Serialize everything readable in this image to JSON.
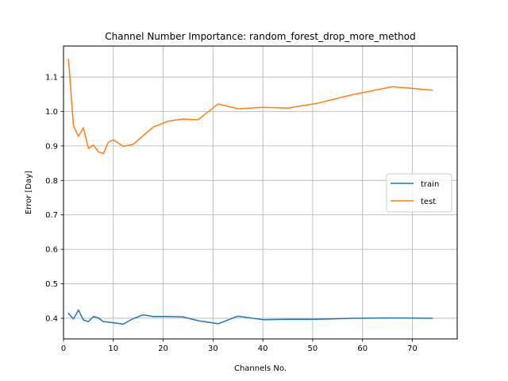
{
  "chart_data": {
    "type": "line",
    "title": "Channel Number Importance: random_forest_drop_more_method",
    "xlabel": "Channels No.",
    "ylabel": "Error [Day]",
    "xlim": [
      0,
      79
    ],
    "ylim": [
      0.34,
      1.19
    ],
    "xticks": [
      0,
      10,
      20,
      30,
      40,
      50,
      60,
      70
    ],
    "yticks": [
      0.4,
      0.5,
      0.6,
      0.7,
      0.8,
      0.9,
      1.0,
      1.1
    ],
    "xtick_labels": [
      "0",
      "10",
      "20",
      "30",
      "40",
      "50",
      "60",
      "70"
    ],
    "ytick_labels": [
      "0.4",
      "0.5",
      "0.6",
      "0.7",
      "0.8",
      "0.9",
      "1.0",
      "1.1"
    ],
    "grid": true,
    "legend_position": "center-right",
    "series": [
      {
        "name": "train",
        "color": "#1f77b4",
        "x": [
          1,
          2,
          3,
          4,
          5,
          6,
          7,
          8,
          9,
          10,
          12,
          14,
          16,
          18,
          21,
          24,
          27,
          31,
          35,
          40,
          45,
          51,
          58,
          66,
          74
        ],
        "y": [
          0.414,
          0.398,
          0.424,
          0.395,
          0.39,
          0.405,
          0.401,
          0.39,
          0.389,
          0.387,
          0.383,
          0.399,
          0.41,
          0.405,
          0.405,
          0.404,
          0.393,
          0.384,
          0.406,
          0.396,
          0.397,
          0.397,
          0.4,
          0.401,
          0.4
        ]
      },
      {
        "name": "test",
        "color": "#ff7f0e",
        "x": [
          1,
          2,
          3,
          4,
          5,
          6,
          7,
          8,
          9,
          10,
          12,
          14,
          16,
          18,
          21,
          24,
          27,
          31,
          35,
          40,
          45,
          51,
          58,
          66,
          74
        ],
        "y": [
          1.152,
          0.958,
          0.928,
          0.953,
          0.893,
          0.903,
          0.883,
          0.878,
          0.911,
          0.918,
          0.899,
          0.905,
          0.93,
          0.955,
          0.972,
          0.978,
          0.976,
          1.022,
          1.008,
          1.012,
          1.01,
          1.024,
          1.049,
          1.072,
          1.062
        ]
      }
    ]
  }
}
